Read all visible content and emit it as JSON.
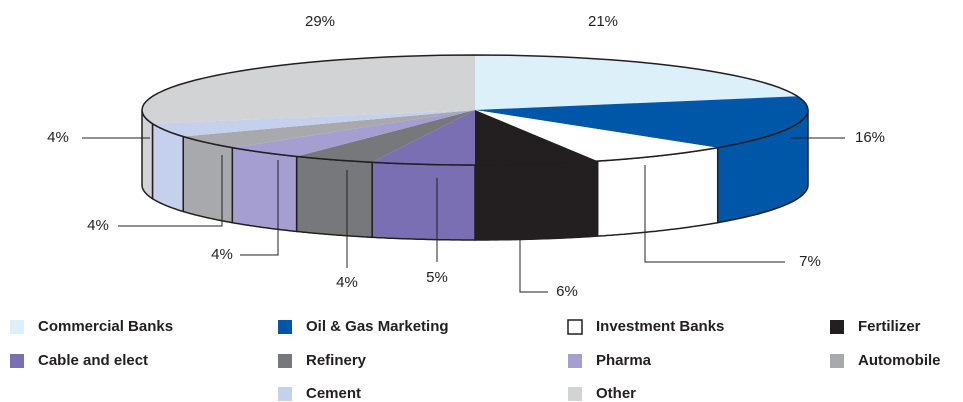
{
  "chart_data": {
    "type": "pie3d",
    "categories": [
      "Commercial Banks",
      "Oil & Gas Marketing",
      "Investment Banks",
      "Fertilizer",
      "Cable and elect",
      "Refinery",
      "Pharma",
      "Automobile",
      "Cement",
      "Other"
    ],
    "values": [
      21,
      16,
      7,
      6,
      5,
      4,
      4,
      4,
      4,
      29
    ],
    "value_labels": [
      "21%",
      "16%",
      "7%",
      "6%",
      "5%",
      "4%",
      "4%",
      "4%",
      "4%",
      "29%"
    ],
    "colors": [
      "#dcf0fa",
      "#0057a8",
      "#ffffff",
      "#231f20",
      "#7b6fb3",
      "#77787b",
      "#a59fd1",
      "#a7a9ac",
      "#c5d0ec",
      "#d1d3d4"
    ]
  }
}
